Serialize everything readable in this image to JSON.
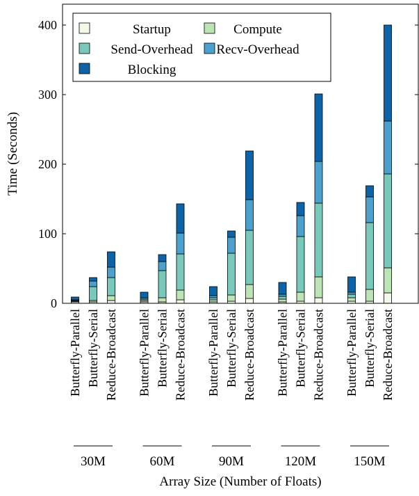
{
  "chart_data": {
    "type": "bar",
    "stacked": true,
    "xlabel": "Array Size (Number of Floats)",
    "ylabel": "Time (Seconds)",
    "ylim": [
      0,
      430
    ],
    "yticks": [
      0,
      100,
      200,
      300,
      400
    ],
    "legend_position": "top-left",
    "groups": [
      "30M",
      "60M",
      "90M",
      "120M",
      "150M"
    ],
    "methods": [
      "Butterfly-Parallel",
      "Butterfly-Serial",
      "Reduce-Broadcast"
    ],
    "series": [
      {
        "name": "Startup",
        "color": "#f3f9e9",
        "values": [
          [
            2,
            2,
            4
          ],
          [
            2,
            2,
            5
          ],
          [
            2,
            3,
            7
          ],
          [
            2,
            3,
            8
          ],
          [
            3,
            3,
            15
          ]
        ]
      },
      {
        "name": "Compute",
        "color": "#bce4b5",
        "values": [
          [
            1,
            2,
            7
          ],
          [
            2,
            6,
            14
          ],
          [
            3,
            9,
            20
          ],
          [
            4,
            13,
            30
          ],
          [
            5,
            17,
            36
          ]
        ]
      },
      {
        "name": "Send-Overhead",
        "color": "#78c9b9",
        "values": [
          [
            1,
            20,
            26
          ],
          [
            2,
            39,
            52
          ],
          [
            3,
            60,
            78
          ],
          [
            4,
            80,
            106
          ],
          [
            5,
            96,
            135
          ]
        ]
      },
      {
        "name": "Recv-Overhead",
        "color": "#4aa1cd",
        "values": [
          [
            1,
            8,
            15
          ],
          [
            2,
            13,
            30
          ],
          [
            3,
            23,
            44
          ],
          [
            3,
            30,
            60
          ],
          [
            3,
            37,
            76
          ]
        ]
      },
      {
        "name": "Blocking",
        "color": "#0c63a8",
        "values": [
          [
            4,
            5,
            22
          ],
          [
            8,
            10,
            42
          ],
          [
            13,
            9,
            70
          ],
          [
            17,
            19,
            97
          ],
          [
            22,
            16,
            138
          ]
        ]
      }
    ]
  }
}
